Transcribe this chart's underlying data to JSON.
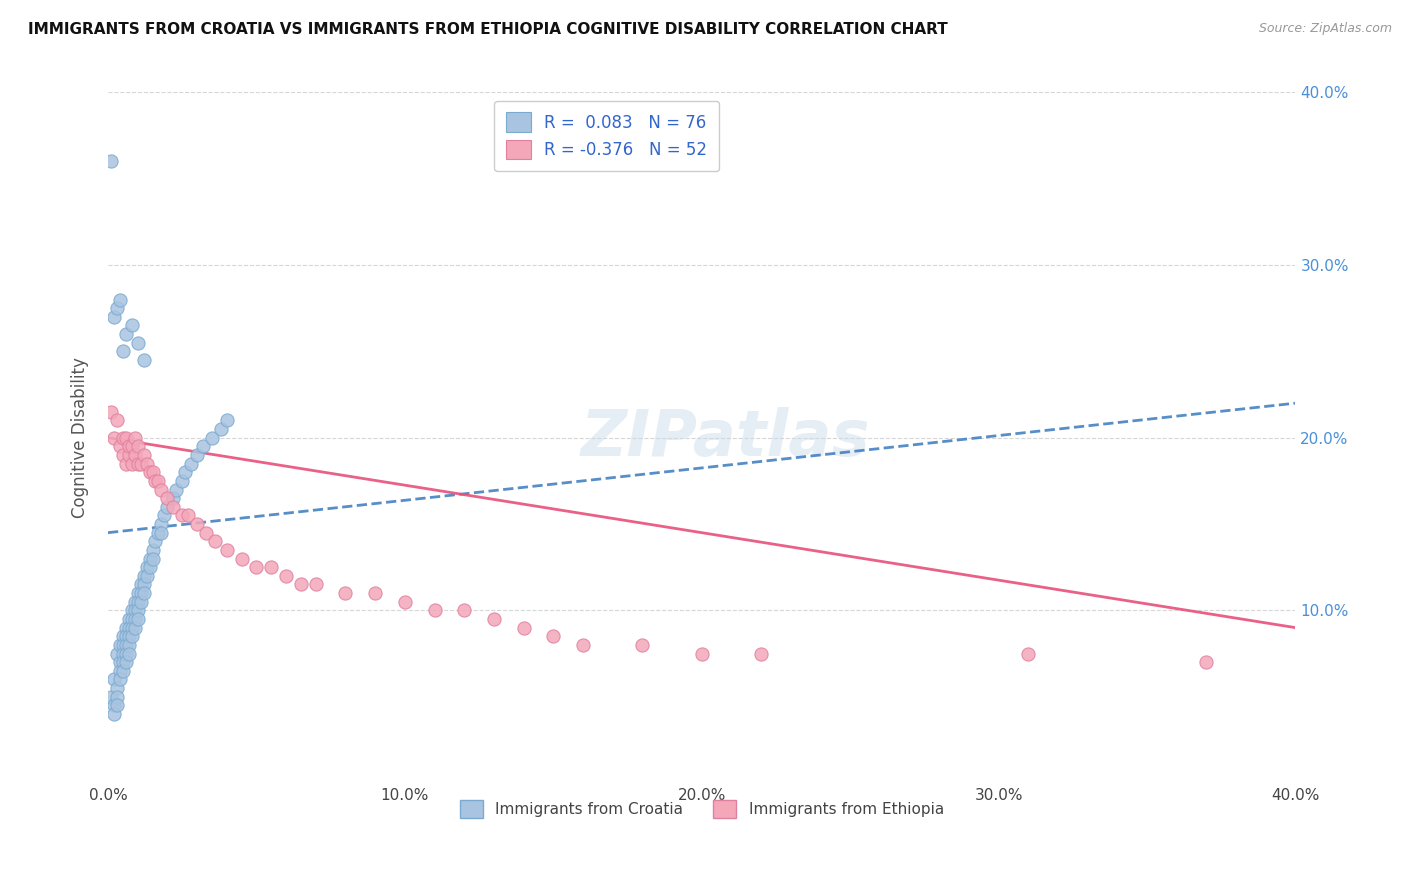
{
  "title": "IMMIGRANTS FROM CROATIA VS IMMIGRANTS FROM ETHIOPIA COGNITIVE DISABILITY CORRELATION CHART",
  "source": "Source: ZipAtlas.com",
  "ylabel": "Cognitive Disability",
  "xlim": [
    0.0,
    0.4
  ],
  "ylim": [
    0.0,
    0.4
  ],
  "xtick_labels": [
    "0.0%",
    "10.0%",
    "20.0%",
    "30.0%",
    "40.0%"
  ],
  "xtick_vals": [
    0.0,
    0.1,
    0.2,
    0.3,
    0.4
  ],
  "right_ytick_labels": [
    "10.0%",
    "20.0%",
    "30.0%",
    "40.0%"
  ],
  "right_ytick_vals": [
    0.1,
    0.2,
    0.3,
    0.4
  ],
  "croatia_color": "#a8c4e0",
  "ethiopia_color": "#f4a7b9",
  "croatia_R": 0.083,
  "croatia_N": 76,
  "ethiopia_R": -0.376,
  "ethiopia_N": 52,
  "trend_color_croatia": "#3a7abf",
  "trend_color_ethiopia": "#e8507a",
  "watermark": "ZIPatlas",
  "legend_label_croatia": "Immigrants from Croatia",
  "legend_label_ethiopia": "Immigrants from Ethiopia",
  "croatia_x": [
    0.001,
    0.001,
    0.002,
    0.002,
    0.002,
    0.003,
    0.003,
    0.003,
    0.003,
    0.004,
    0.004,
    0.004,
    0.004,
    0.005,
    0.005,
    0.005,
    0.005,
    0.005,
    0.006,
    0.006,
    0.006,
    0.006,
    0.006,
    0.007,
    0.007,
    0.007,
    0.007,
    0.007,
    0.008,
    0.008,
    0.008,
    0.008,
    0.009,
    0.009,
    0.009,
    0.009,
    0.01,
    0.01,
    0.01,
    0.01,
    0.011,
    0.011,
    0.011,
    0.012,
    0.012,
    0.012,
    0.013,
    0.013,
    0.014,
    0.014,
    0.015,
    0.015,
    0.016,
    0.017,
    0.018,
    0.018,
    0.019,
    0.02,
    0.022,
    0.023,
    0.025,
    0.026,
    0.028,
    0.03,
    0.032,
    0.035,
    0.038,
    0.04,
    0.002,
    0.003,
    0.004,
    0.005,
    0.006,
    0.008,
    0.01,
    0.012
  ],
  "croatia_y": [
    0.36,
    0.05,
    0.045,
    0.04,
    0.06,
    0.055,
    0.05,
    0.045,
    0.075,
    0.07,
    0.065,
    0.06,
    0.08,
    0.085,
    0.08,
    0.075,
    0.07,
    0.065,
    0.09,
    0.085,
    0.08,
    0.075,
    0.07,
    0.095,
    0.09,
    0.085,
    0.08,
    0.075,
    0.1,
    0.095,
    0.09,
    0.085,
    0.105,
    0.1,
    0.095,
    0.09,
    0.11,
    0.105,
    0.1,
    0.095,
    0.115,
    0.11,
    0.105,
    0.12,
    0.115,
    0.11,
    0.125,
    0.12,
    0.13,
    0.125,
    0.135,
    0.13,
    0.14,
    0.145,
    0.15,
    0.145,
    0.155,
    0.16,
    0.165,
    0.17,
    0.175,
    0.18,
    0.185,
    0.19,
    0.195,
    0.2,
    0.205,
    0.21,
    0.27,
    0.275,
    0.28,
    0.25,
    0.26,
    0.265,
    0.255,
    0.245
  ],
  "ethiopia_x": [
    0.001,
    0.002,
    0.003,
    0.004,
    0.005,
    0.005,
    0.006,
    0.006,
    0.007,
    0.007,
    0.008,
    0.008,
    0.009,
    0.009,
    0.01,
    0.01,
    0.011,
    0.012,
    0.013,
    0.014,
    0.015,
    0.016,
    0.017,
    0.018,
    0.02,
    0.022,
    0.025,
    0.027,
    0.03,
    0.033,
    0.036,
    0.04,
    0.045,
    0.05,
    0.055,
    0.06,
    0.065,
    0.07,
    0.08,
    0.09,
    0.1,
    0.11,
    0.12,
    0.13,
    0.14,
    0.15,
    0.16,
    0.18,
    0.2,
    0.22,
    0.31,
    0.37
  ],
  "ethiopia_y": [
    0.215,
    0.2,
    0.21,
    0.195,
    0.19,
    0.2,
    0.185,
    0.2,
    0.19,
    0.195,
    0.185,
    0.195,
    0.19,
    0.2,
    0.185,
    0.195,
    0.185,
    0.19,
    0.185,
    0.18,
    0.18,
    0.175,
    0.175,
    0.17,
    0.165,
    0.16,
    0.155,
    0.155,
    0.15,
    0.145,
    0.14,
    0.135,
    0.13,
    0.125,
    0.125,
    0.12,
    0.115,
    0.115,
    0.11,
    0.11,
    0.105,
    0.1,
    0.1,
    0.095,
    0.09,
    0.085,
    0.08,
    0.08,
    0.075,
    0.075,
    0.075,
    0.07
  ]
}
